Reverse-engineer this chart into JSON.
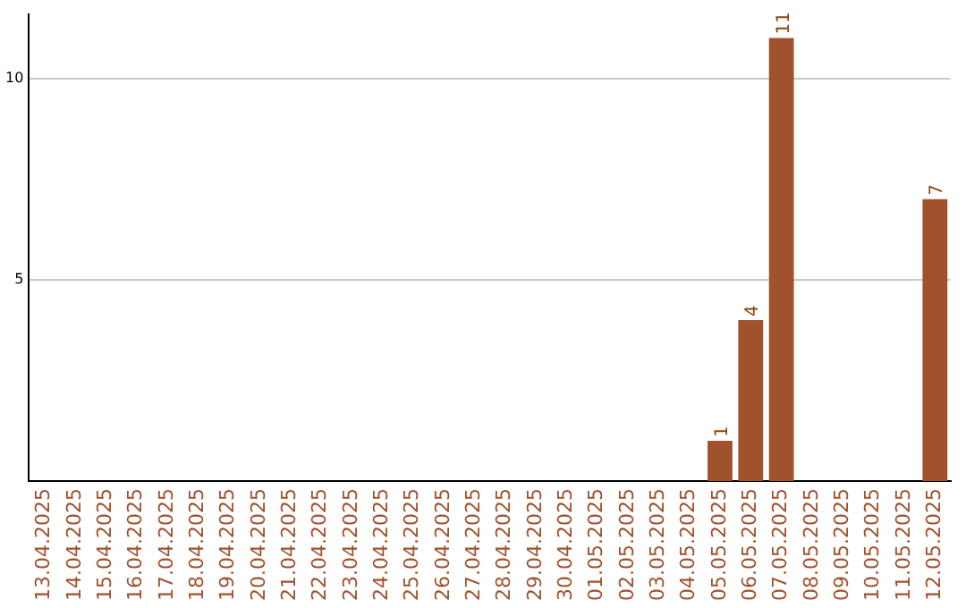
{
  "chart_data": {
    "type": "bar",
    "categories": [
      "13.04.2025",
      "14.04.2025",
      "15.04.2025",
      "16.04.2025",
      "17.04.2025",
      "18.04.2025",
      "19.04.2025",
      "20.04.2025",
      "21.04.2025",
      "22.04.2025",
      "23.04.2025",
      "24.04.2025",
      "25.04.2025",
      "26.04.2025",
      "27.04.2025",
      "28.04.2025",
      "29.04.2025",
      "30.04.2025",
      "01.05.2025",
      "02.05.2025",
      "03.05.2025",
      "04.05.2025",
      "05.05.2025",
      "06.05.2025",
      "07.05.2025",
      "08.05.2025",
      "09.05.2025",
      "10.05.2025",
      "11.05.2025",
      "12.05.2025"
    ],
    "values": [
      0,
      0,
      0,
      0,
      0,
      0,
      0,
      0,
      0,
      0,
      0,
      0,
      0,
      0,
      0,
      0,
      0,
      0,
      0,
      0,
      0,
      0,
      1,
      4,
      11,
      0,
      0,
      0,
      0,
      7
    ],
    "value_labels": [
      null,
      null,
      null,
      null,
      null,
      null,
      null,
      null,
      null,
      null,
      null,
      null,
      null,
      null,
      null,
      null,
      null,
      null,
      null,
      null,
      null,
      null,
      "1",
      "4",
      "11",
      null,
      null,
      null,
      null,
      "7"
    ],
    "color": "#a0522d",
    "ylim": [
      0,
      11.6
    ],
    "yticks": [
      5,
      10
    ],
    "grid": "y",
    "legend": false
  }
}
